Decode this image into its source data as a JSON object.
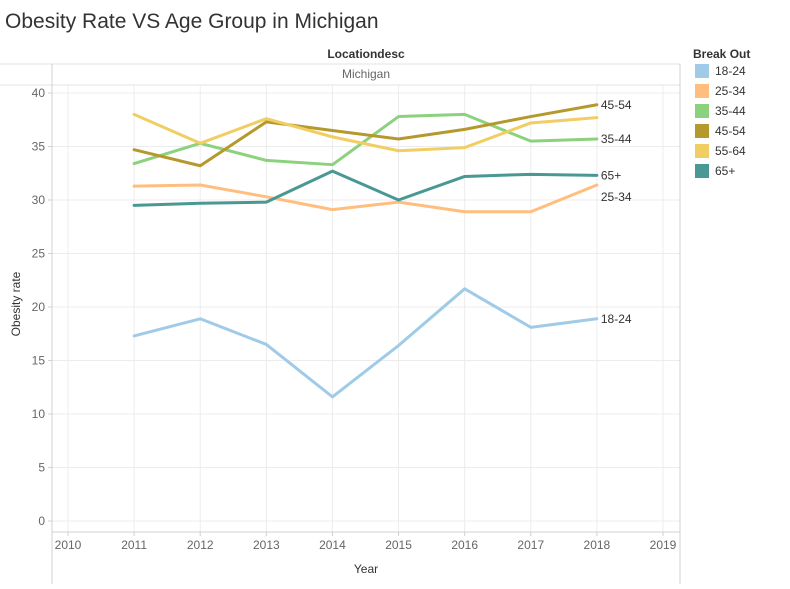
{
  "chart_data": {
    "type": "line",
    "title": "Obesity Rate VS Age Group in Michigan",
    "column_header": "Locationdesc",
    "pane_label": "Michigan",
    "xlabel": "Year",
    "ylabel": "Obesity rate",
    "xlim": [
      2010,
      2019
    ],
    "ylim": [
      0,
      40
    ],
    "x_ticks": [
      "2010",
      "2011",
      "2012",
      "2013",
      "2014",
      "2015",
      "2016",
      "2017",
      "2018",
      "2019"
    ],
    "y_ticks": [
      "0",
      "5",
      "10",
      "15",
      "20",
      "25",
      "30",
      "35",
      "40"
    ],
    "x": [
      2011,
      2012,
      2013,
      2014,
      2015,
      2016,
      2017,
      2018
    ],
    "grid": true,
    "legend": {
      "title": "Break Out",
      "position": "right"
    },
    "series": [
      {
        "name": "18-24",
        "color": "#a0cbe8",
        "end_label": "18-24",
        "values": [
          17.3,
          18.9,
          16.5,
          11.6,
          16.4,
          21.7,
          18.1,
          18.9
        ]
      },
      {
        "name": "25-34",
        "color": "#ffbe7d",
        "end_label": "25-34",
        "values": [
          31.3,
          31.4,
          30.3,
          29.1,
          29.8,
          28.9,
          28.9,
          31.4
        ]
      },
      {
        "name": "35-44",
        "color": "#8cd17d",
        "end_label": "35-44",
        "values": [
          33.4,
          35.3,
          33.7,
          33.3,
          37.8,
          38.0,
          35.5,
          35.7
        ]
      },
      {
        "name": "45-54",
        "color": "#b6992d",
        "end_label": "45-54",
        "values": [
          34.7,
          33.2,
          37.3,
          36.5,
          35.7,
          36.6,
          37.8,
          38.9
        ]
      },
      {
        "name": "55-64",
        "color": "#f1ce63",
        "end_label": "",
        "values": [
          38.0,
          35.3,
          37.6,
          35.9,
          34.6,
          34.9,
          37.2,
          37.7
        ]
      },
      {
        "name": "65+",
        "color": "#499894",
        "end_label": "65+",
        "values": [
          29.5,
          29.7,
          29.8,
          32.7,
          30.0,
          32.2,
          32.4,
          32.3
        ]
      }
    ]
  }
}
